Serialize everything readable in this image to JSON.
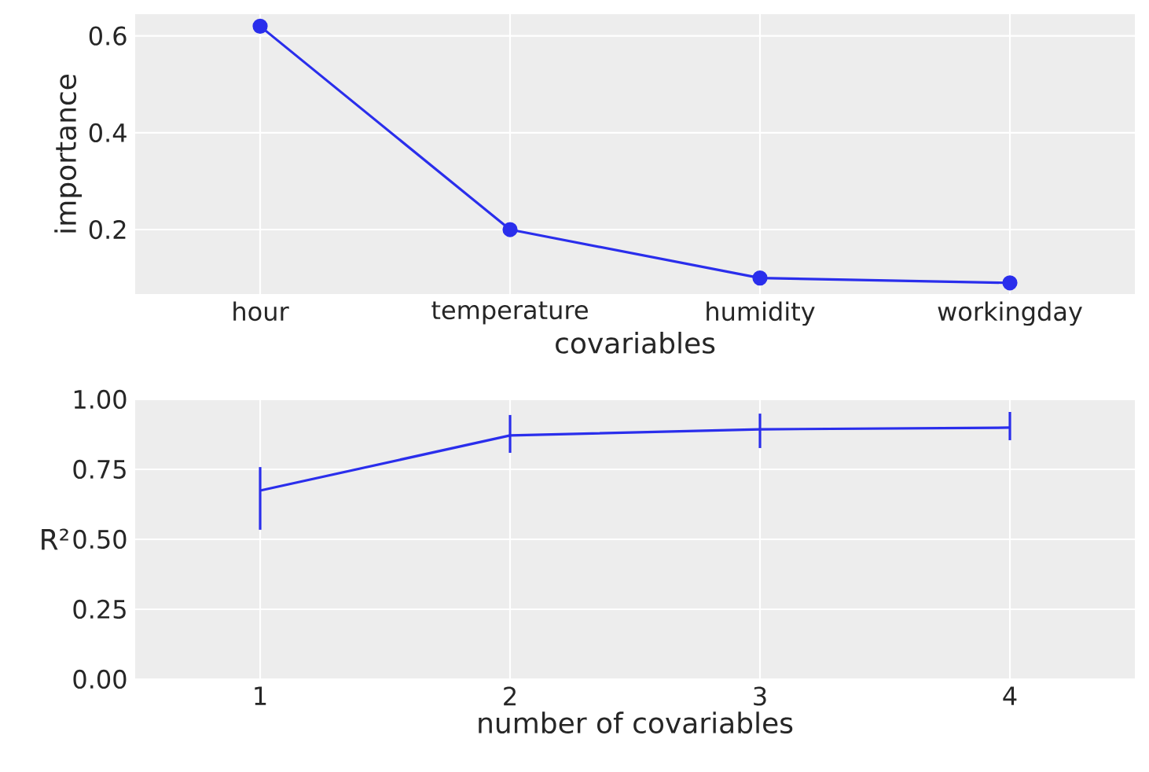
{
  "chart_data": [
    {
      "type": "line",
      "xlabel": "covariables",
      "ylabel": "importance",
      "categories": [
        "hour",
        "temperature",
        "humidity",
        "workingday"
      ],
      "series": [
        {
          "color": "#2a2eec",
          "values": [
            0.62,
            0.2,
            0.1,
            0.09
          ]
        }
      ],
      "ylim": [
        0.067,
        0.645
      ],
      "yticks": [
        {
          "value": 0.2,
          "label": "0.2"
        },
        {
          "value": 0.4,
          "label": "0.4"
        },
        {
          "value": 0.6,
          "label": "0.6"
        }
      ],
      "grid": true,
      "marker": "circle",
      "line_style": "solid"
    },
    {
      "type": "line",
      "xlabel": "number of covariables",
      "ylabel": "R²",
      "x": [
        1,
        2,
        3,
        4
      ],
      "series": [
        {
          "color": "#2a2eec",
          "values": [
            0.674,
            0.871,
            0.893,
            0.899
          ],
          "errors": [
            [
              0.534,
              0.758
            ],
            [
              0.809,
              0.944
            ],
            [
              0.826,
              0.949
            ],
            [
              0.854,
              0.955
            ]
          ]
        }
      ],
      "xlim": [
        0.5,
        4.5
      ],
      "xticks": [
        1,
        2,
        3,
        4
      ],
      "ylim": [
        0,
        1
      ],
      "yticks": [
        {
          "value": 0,
          "label": "0.00"
        },
        {
          "value": 0.25,
          "label": "0.25"
        },
        {
          "value": 0.5,
          "label": "0.50"
        },
        {
          "value": 0.75,
          "label": "0.75"
        },
        {
          "value": 1,
          "label": "1.00"
        }
      ],
      "grid": true,
      "marker": "none",
      "line_style": "solid"
    }
  ]
}
